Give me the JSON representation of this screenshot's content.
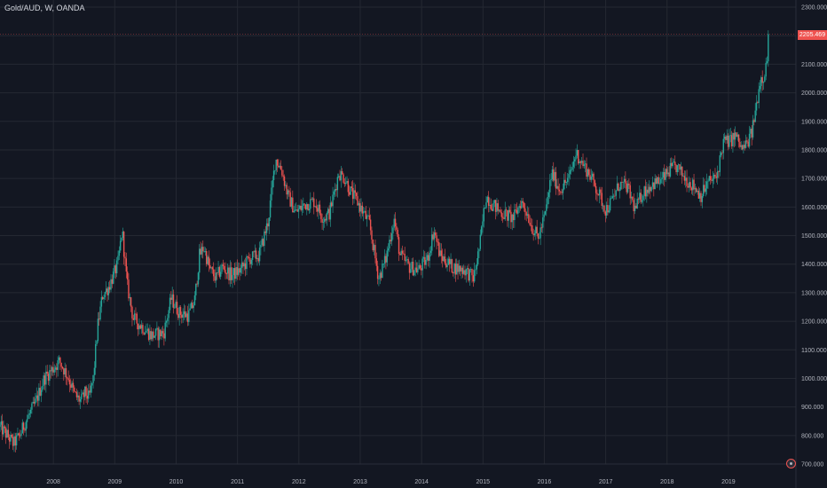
{
  "header": {
    "title": "Gold/AUD, W, OANDA"
  },
  "last_price_label": "2205.469",
  "colors": {
    "background": "#131722",
    "grid": "#242832",
    "up": "#26a69a",
    "down": "#ef5350",
    "text": "#b2b5be"
  },
  "chart_data": {
    "type": "candlestick",
    "title": "Gold/AUD, W, OANDA",
    "y_axis": {
      "position": "right",
      "range": [
        700,
        2300
      ],
      "ticks": [
        700,
        800,
        900,
        1000,
        1100,
        1200,
        1300,
        1400,
        1500,
        1600,
        1700,
        1800,
        1900,
        2000,
        2100,
        2200,
        2300
      ],
      "tick_labels": [
        "700.000",
        "800.000",
        "900.000",
        "1000.000",
        "1100.000",
        "1200.000",
        "1300.000",
        "1400.000",
        "1500.000",
        "1600.000",
        "1700.000",
        "1800.000",
        "1900.000",
        "2000.000",
        "2100.000",
        "2200.000",
        "2300.000"
      ]
    },
    "x_axis": {
      "ticks": [
        2008,
        2009,
        2010,
        2011,
        2012,
        2013,
        2014,
        2015,
        2016,
        2017,
        2018,
        2019
      ],
      "tick_labels": [
        "2008",
        "2009",
        "2010",
        "2011",
        "2012",
        "2013",
        "2014",
        "2015",
        "2016",
        "2017",
        "2018",
        "2019"
      ],
      "range": [
        2007.13,
        2020.1
      ]
    },
    "grid": true,
    "last_price": 2205.469,
    "price_path": [
      [
        2007.13,
        830
      ],
      [
        2007.25,
        800
      ],
      [
        2007.35,
        770
      ],
      [
        2007.45,
        800
      ],
      [
        2007.55,
        850
      ],
      [
        2007.7,
        910
      ],
      [
        2007.85,
        1000
      ],
      [
        2008.1,
        1060
      ],
      [
        2008.25,
        1000
      ],
      [
        2008.35,
        940
      ],
      [
        2008.45,
        920
      ],
      [
        2008.52,
        950
      ],
      [
        2008.58,
        930
      ],
      [
        2008.65,
        1000
      ],
      [
        2008.72,
        1180
      ],
      [
        2008.8,
        1290
      ],
      [
        2008.9,
        1320
      ],
      [
        2009.05,
        1400
      ],
      [
        2009.12,
        1520
      ],
      [
        2009.2,
        1330
      ],
      [
        2009.3,
        1210
      ],
      [
        2009.45,
        1180
      ],
      [
        2009.6,
        1150
      ],
      [
        2009.8,
        1160
      ],
      [
        2009.92,
        1280
      ],
      [
        2010.05,
        1230
      ],
      [
        2010.2,
        1220
      ],
      [
        2010.3,
        1270
      ],
      [
        2010.38,
        1430
      ],
      [
        2010.45,
        1460
      ],
      [
        2010.55,
        1380
      ],
      [
        2010.65,
        1350
      ],
      [
        2010.75,
        1390
      ],
      [
        2010.9,
        1360
      ],
      [
        2011.05,
        1380
      ],
      [
        2011.2,
        1420
      ],
      [
        2011.35,
        1430
      ],
      [
        2011.5,
        1550
      ],
      [
        2011.62,
        1770
      ],
      [
        2011.72,
        1730
      ],
      [
        2011.82,
        1640
      ],
      [
        2011.95,
        1580
      ],
      [
        2012.1,
        1610
      ],
      [
        2012.25,
        1620
      ],
      [
        2012.4,
        1560
      ],
      [
        2012.5,
        1580
      ],
      [
        2012.65,
        1720
      ],
      [
        2012.75,
        1700
      ],
      [
        2012.85,
        1650
      ],
      [
        2012.95,
        1620
      ],
      [
        2013.05,
        1580
      ],
      [
        2013.15,
        1540
      ],
      [
        2013.3,
        1350
      ],
      [
        2013.42,
        1420
      ],
      [
        2013.55,
        1560
      ],
      [
        2013.65,
        1430
      ],
      [
        2013.8,
        1390
      ],
      [
        2013.95,
        1380
      ],
      [
        2014.1,
        1420
      ],
      [
        2014.2,
        1520
      ],
      [
        2014.3,
        1430
      ],
      [
        2014.5,
        1390
      ],
      [
        2014.7,
        1380
      ],
      [
        2014.85,
        1350
      ],
      [
        2014.95,
        1470
      ],
      [
        2015.05,
        1640
      ],
      [
        2015.15,
        1610
      ],
      [
        2015.3,
        1580
      ],
      [
        2015.5,
        1560
      ],
      [
        2015.62,
        1620
      ],
      [
        2015.72,
        1580
      ],
      [
        2015.8,
        1530
      ],
      [
        2015.9,
        1490
      ],
      [
        2016.02,
        1580
      ],
      [
        2016.12,
        1720
      ],
      [
        2016.25,
        1660
      ],
      [
        2016.4,
        1700
      ],
      [
        2016.52,
        1790
      ],
      [
        2016.6,
        1760
      ],
      [
        2016.75,
        1710
      ],
      [
        2016.9,
        1640
      ],
      [
        2017.0,
        1590
      ],
      [
        2017.1,
        1620
      ],
      [
        2017.22,
        1680
      ],
      [
        2017.35,
        1670
      ],
      [
        2017.48,
        1590
      ],
      [
        2017.6,
        1650
      ],
      [
        2017.75,
        1680
      ],
      [
        2017.9,
        1690
      ],
      [
        2018.05,
        1730
      ],
      [
        2018.15,
        1740
      ],
      [
        2018.3,
        1700
      ],
      [
        2018.45,
        1670
      ],
      [
        2018.55,
        1640
      ],
      [
        2018.68,
        1690
      ],
      [
        2018.8,
        1700
      ],
      [
        2018.92,
        1830
      ],
      [
        2019.02,
        1830
      ],
      [
        2019.12,
        1850
      ],
      [
        2019.22,
        1800
      ],
      [
        2019.3,
        1820
      ],
      [
        2019.38,
        1860
      ],
      [
        2019.45,
        1950
      ],
      [
        2019.52,
        2050
      ],
      [
        2019.58,
        2060
      ],
      [
        2019.64,
        2130
      ],
      [
        2019.66,
        2205.469
      ]
    ]
  }
}
